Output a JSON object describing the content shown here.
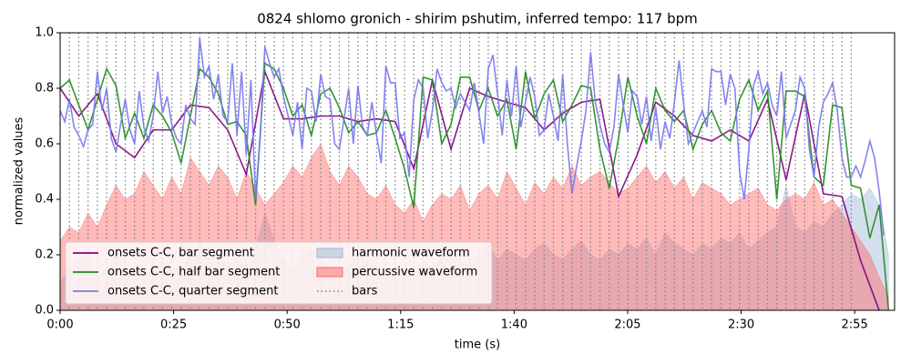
{
  "chart_data": {
    "type": "line",
    "title": "0824 shlomo gronich - shirim pshutim, inferred tempo: 117 bpm",
    "xlabel": "time (s)",
    "ylabel": "normalized values",
    "xlim": [
      0,
      183.8
    ],
    "ylim": [
      0,
      1
    ],
    "xticks": [
      {
        "value": 0,
        "label": "0:00"
      },
      {
        "value": 25,
        "label": "0:25"
      },
      {
        "value": 50,
        "label": "0:50"
      },
      {
        "value": 75,
        "label": "1:15"
      },
      {
        "value": 100,
        "label": "1:40"
      },
      {
        "value": 125,
        "label": "2:05"
      },
      {
        "value": 150,
        "label": "2:30"
      },
      {
        "value": 175,
        "label": "2:55"
      }
    ],
    "yticks": [
      {
        "value": 0,
        "label": "0.0"
      },
      0.2,
      0.4,
      0.6,
      0.8,
      {
        "value": 1,
        "label": "1.0"
      }
    ],
    "legend": "lower left",
    "x": [
      0,
      2.05,
      4.1,
      6.15,
      8.2,
      10.25,
      12.3,
      14.35,
      16.4,
      18.45,
      20.5,
      22.55,
      24.6,
      26.65,
      28.7,
      30.75,
      32.8,
      34.85,
      36.9,
      38.95,
      41,
      43.05,
      45.1,
      47.15,
      49.2,
      51.25,
      53.3,
      55.35,
      57.4,
      59.45,
      61.5,
      63.55,
      65.6,
      67.65,
      69.7,
      71.75,
      73.8,
      75.85,
      77.9,
      79.95,
      82,
      84.05,
      86.1,
      88.15,
      90.2,
      92.25,
      94.3,
      96.35,
      98.4,
      100.45,
      102.5,
      104.55,
      106.6,
      108.65,
      110.7,
      112.75,
      114.8,
      116.85,
      118.9,
      120.95,
      123,
      125.05,
      127.1,
      129.15,
      131.2,
      133.25,
      135.3,
      137.35,
      139.4,
      141.45,
      143.5,
      145.55,
      147.6,
      149.65,
      151.7,
      153.75,
      155.8,
      157.85,
      159.9,
      161.95,
      164,
      166.05,
      168.1,
      170.15,
      172.2,
      174.25,
      176.3,
      178.35,
      180.4,
      182.45
    ],
    "series": [
      {
        "name": "onsets C-C, bar segment",
        "kind": "line",
        "color": "#800080",
        "x": [
          0,
          4.1,
          8.2,
          12.3,
          16.4,
          20.5,
          24.6,
          28.7,
          32.8,
          36.9,
          41,
          45.1,
          49.2,
          53.3,
          57.4,
          61.5,
          65.6,
          69.7,
          73.8,
          77.9,
          82,
          86.1,
          90.2,
          94.3,
          98.4,
          102.5,
          106.6,
          110.7,
          114.8,
          118.9,
          123,
          127.1,
          131.2,
          135.3,
          139.4,
          143.5,
          147.6,
          151.7,
          155.8,
          159.9,
          164,
          168.1,
          172.2,
          176.3,
          180.4
        ],
        "values": [
          0.8,
          0.7,
          0.78,
          0.6,
          0.55,
          0.65,
          0.65,
          0.74,
          0.73,
          0.65,
          0.49,
          0.86,
          0.69,
          0.69,
          0.7,
          0.7,
          0.68,
          0.69,
          0.68,
          0.51,
          0.83,
          0.58,
          0.8,
          0.77,
          0.75,
          0.73,
          0.65,
          0.71,
          0.75,
          0.76,
          0.41,
          0.56,
          0.75,
          0.7,
          0.63,
          0.61,
          0.65,
          0.61,
          0.76,
          0.47,
          0.78,
          0.42,
          0.41,
          0.18,
          0
        ]
      },
      {
        "name": "onsets C-C, half bar segment",
        "kind": "line",
        "color": "#1f8a1f",
        "values": [
          0.8,
          0.83,
          0.74,
          0.65,
          0.76,
          0.87,
          0.81,
          0.62,
          0.71,
          0.62,
          0.74,
          0.7,
          0.64,
          0.53,
          0.7,
          0.87,
          0.84,
          0.78,
          0.67,
          0.68,
          0.63,
          0.38,
          0.89,
          0.87,
          0.8,
          0.7,
          0.74,
          0.63,
          0.78,
          0.8,
          0.73,
          0.64,
          0.68,
          0.63,
          0.64,
          0.72,
          0.62,
          0.51,
          0.37,
          0.84,
          0.83,
          0.6,
          0.67,
          0.84,
          0.84,
          0.72,
          0.8,
          0.7,
          0.76,
          0.58,
          0.86,
          0.69,
          0.78,
          0.83,
          0.68,
          0.74,
          0.81,
          0.8,
          0.58,
          0.44,
          0.62,
          0.84,
          0.7,
          0.6,
          0.8,
          0.72,
          0.68,
          0.72,
          0.58,
          0.67,
          0.72,
          0.64,
          0.61,
          0.76,
          0.83,
          0.72,
          0.79,
          0.4,
          0.79,
          0.79,
          0.77,
          0.48,
          0.45,
          0.74,
          0.73,
          0.45,
          0.44,
          0.26,
          0.38,
          0
        ]
      },
      {
        "name": "onsets C-C, quarter segment",
        "kind": "line",
        "color": "#7777ee",
        "x": [
          0,
          1.025,
          2.05,
          3.075,
          4.1,
          5.125,
          6.15,
          7.175,
          8.2,
          9.225,
          10.25,
          11.275,
          12.3,
          13.325,
          14.35,
          15.375,
          16.4,
          17.425,
          18.45,
          19.475,
          20.5,
          21.525,
          22.55,
          23.575,
          24.6,
          25.625,
          26.65,
          27.675,
          28.7,
          29.725,
          30.75,
          31.775,
          32.8,
          33.825,
          34.85,
          35.875,
          36.9,
          37.925,
          38.95,
          39.975,
          41,
          42.025,
          43.05,
          44.075,
          45.1,
          46.125,
          47.15,
          48.175,
          49.2,
          50.225,
          51.25,
          52.275,
          53.3,
          54.325,
          55.35,
          56.375,
          57.4,
          58.425,
          59.45,
          60.475,
          61.5,
          62.525,
          63.55,
          64.575,
          65.6,
          66.625,
          67.65,
          68.675,
          69.7,
          70.725,
          71.75,
          72.775,
          73.8,
          74.825,
          75.85,
          76.875,
          77.9,
          78.925,
          79.95,
          80.975,
          82,
          83.025,
          84.05,
          85.075,
          86.1,
          87.125,
          88.15,
          89.175,
          90.2,
          91.225,
          92.25,
          93.275,
          94.3,
          95.325,
          96.35,
          97.375,
          98.4,
          99.425,
          100.45,
          101.475,
          102.5,
          103.525,
          104.55,
          105.575,
          106.6,
          107.625,
          108.65,
          109.675,
          110.7,
          111.725,
          112.75,
          113.775,
          114.8,
          115.825,
          116.85,
          117.875,
          118.9,
          119.925,
          120.95,
          121.975,
          123,
          124.025,
          125.05,
          126.075,
          127.1,
          128.125,
          129.15,
          130.175,
          131.2,
          132.225,
          133.25,
          134.275,
          135.3,
          136.325,
          137.35,
          138.375,
          139.4,
          140.425,
          141.45,
          142.475,
          143.5,
          144.525,
          145.55,
          146.575,
          147.6,
          148.625,
          149.65,
          150.675,
          151.7,
          152.725,
          153.75,
          154.775,
          155.8,
          156.825,
          157.85,
          158.875,
          159.9,
          160.925,
          161.95,
          162.975,
          164,
          165.025,
          166.05,
          167.075,
          168.1,
          169.125,
          170.15,
          171.175,
          172.2,
          173.225,
          174.25,
          175.275,
          176.3,
          177.325,
          178.35,
          179.375,
          180.4,
          181.425
        ],
        "values": [
          0.72,
          0.68,
          0.76,
          0.66,
          0.63,
          0.59,
          0.65,
          0.67,
          0.86,
          0.72,
          0.8,
          0.62,
          0.57,
          0.67,
          0.76,
          0.65,
          0.6,
          0.79,
          0.66,
          0.61,
          0.7,
          0.86,
          0.71,
          0.77,
          0.67,
          0.62,
          0.6,
          0.74,
          0.69,
          0.67,
          0.98,
          0.84,
          0.88,
          0.76,
          0.85,
          0.7,
          0.68,
          0.89,
          0.63,
          0.86,
          0.56,
          0.83,
          0.4,
          0.63,
          0.95,
          0.89,
          0.84,
          0.87,
          0.77,
          0.7,
          0.63,
          0.75,
          0.58,
          0.8,
          0.79,
          0.68,
          0.85,
          0.77,
          0.76,
          0.6,
          0.58,
          0.69,
          0.8,
          0.6,
          0.81,
          0.66,
          0.63,
          0.75,
          0.63,
          0.53,
          0.88,
          0.82,
          0.82,
          0.62,
          0.64,
          0.48,
          0.76,
          0.83,
          0.8,
          0.62,
          0.72,
          0.87,
          0.82,
          0.79,
          0.8,
          0.73,
          0.78,
          0.75,
          0.72,
          0.82,
          0.71,
          0.6,
          0.87,
          0.92,
          0.78,
          0.63,
          0.83,
          0.7,
          0.88,
          0.66,
          0.75,
          0.84,
          0.77,
          0.63,
          0.65,
          0.78,
          0.7,
          0.61,
          0.85,
          0.6,
          0.42,
          0.52,
          0.61,
          0.72,
          0.93,
          0.75,
          0.67,
          0.6,
          0.57,
          0.66,
          0.85,
          0.74,
          0.64,
          0.79,
          0.77,
          0.67,
          0.77,
          0.61,
          0.73,
          0.58,
          0.68,
          0.62,
          0.75,
          0.9,
          0.74,
          0.6,
          0.64,
          0.68,
          0.72,
          0.66,
          0.87,
          0.86,
          0.86,
          0.74,
          0.85,
          0.8,
          0.5,
          0.4,
          0.58,
          0.81,
          0.86,
          0.78,
          0.82,
          0.74,
          0.7,
          0.86,
          0.62,
          0.67,
          0.72,
          0.84,
          0.8,
          0.58,
          0.48,
          0.66,
          0.75,
          0.78,
          0.82,
          0.72,
          0.55,
          0.48,
          0.48,
          0.52,
          0.48,
          0.54,
          0.61,
          0.55,
          0.43,
          0.27
        ]
      },
      {
        "name": "harmonic waveform",
        "kind": "area",
        "color": "#9fb8d6",
        "values": [
          0.1,
          0.15,
          0.18,
          0.22,
          0.12,
          0.15,
          0.2,
          0.18,
          0.14,
          0.12,
          0.15,
          0.18,
          0.16,
          0.14,
          0.2,
          0.25,
          0.18,
          0.22,
          0.15,
          0.2,
          0.16,
          0.22,
          0.35,
          0.25,
          0.18,
          0.15,
          0.2,
          0.22,
          0.18,
          0.15,
          0.14,
          0.16,
          0.2,
          0.18,
          0.15,
          0.12,
          0.16,
          0.14,
          0.12,
          0.18,
          0.15,
          0.2,
          0.22,
          0.18,
          0.16,
          0.2,
          0.24,
          0.18,
          0.22,
          0.2,
          0.18,
          0.22,
          0.24,
          0.2,
          0.18,
          0.22,
          0.25,
          0.2,
          0.18,
          0.22,
          0.2,
          0.24,
          0.22,
          0.26,
          0.2,
          0.28,
          0.24,
          0.22,
          0.2,
          0.24,
          0.22,
          0.26,
          0.24,
          0.28,
          0.22,
          0.25,
          0.28,
          0.3,
          0.45,
          0.3,
          0.28,
          0.32,
          0.3,
          0.35,
          0.38,
          0.42,
          0.4,
          0.44,
          0.38,
          0.2
        ]
      },
      {
        "name": "percussive waveform",
        "kind": "area",
        "color": "#ff6666",
        "values": [
          0.25,
          0.3,
          0.28,
          0.35,
          0.3,
          0.38,
          0.45,
          0.4,
          0.42,
          0.5,
          0.45,
          0.4,
          0.48,
          0.42,
          0.55,
          0.5,
          0.45,
          0.52,
          0.48,
          0.4,
          0.5,
          0.44,
          0.38,
          0.42,
          0.46,
          0.52,
          0.48,
          0.55,
          0.6,
          0.5,
          0.45,
          0.52,
          0.48,
          0.42,
          0.4,
          0.45,
          0.38,
          0.35,
          0.4,
          0.32,
          0.38,
          0.42,
          0.4,
          0.45,
          0.36,
          0.42,
          0.45,
          0.4,
          0.5,
          0.44,
          0.38,
          0.46,
          0.42,
          0.48,
          0.44,
          0.52,
          0.45,
          0.48,
          0.5,
          0.46,
          0.42,
          0.44,
          0.48,
          0.52,
          0.46,
          0.5,
          0.44,
          0.48,
          0.4,
          0.46,
          0.44,
          0.42,
          0.38,
          0.4,
          0.42,
          0.44,
          0.38,
          0.36,
          0.4,
          0.42,
          0.4,
          0.46,
          0.38,
          0.4,
          0.35,
          0.3,
          0.25,
          0.2,
          0.12,
          0.05
        ]
      }
    ],
    "bars": {
      "name": "bars",
      "color": "#808080",
      "x": [
        0,
        2.05,
        4.1,
        6.15,
        8.2,
        10.25,
        12.3,
        14.35,
        16.4,
        18.45,
        20.5,
        22.55,
        24.6,
        26.65,
        28.7,
        30.75,
        32.8,
        34.85,
        36.9,
        38.95,
        41,
        43.05,
        45.1,
        47.15,
        49.2,
        51.25,
        53.3,
        55.35,
        57.4,
        59.45,
        61.5,
        63.55,
        65.6,
        67.65,
        69.7,
        71.75,
        73.8,
        75.85,
        77.9,
        79.95,
        82,
        84.05,
        86.1,
        88.15,
        90.2,
        92.25,
        94.3,
        96.35,
        98.4,
        100.45,
        102.5,
        104.55,
        106.6,
        108.65,
        110.7,
        112.75,
        114.8,
        116.85,
        118.9,
        120.95,
        123,
        125.05,
        127.1,
        129.15,
        131.2,
        133.25,
        135.3,
        137.35,
        139.4,
        141.45,
        143.5,
        145.55,
        147.6,
        149.65,
        151.7,
        153.75,
        155.8,
        157.85,
        159.9,
        161.95,
        164,
        166.05,
        168.1,
        170.15,
        172.2,
        174.25
      ]
    }
  }
}
